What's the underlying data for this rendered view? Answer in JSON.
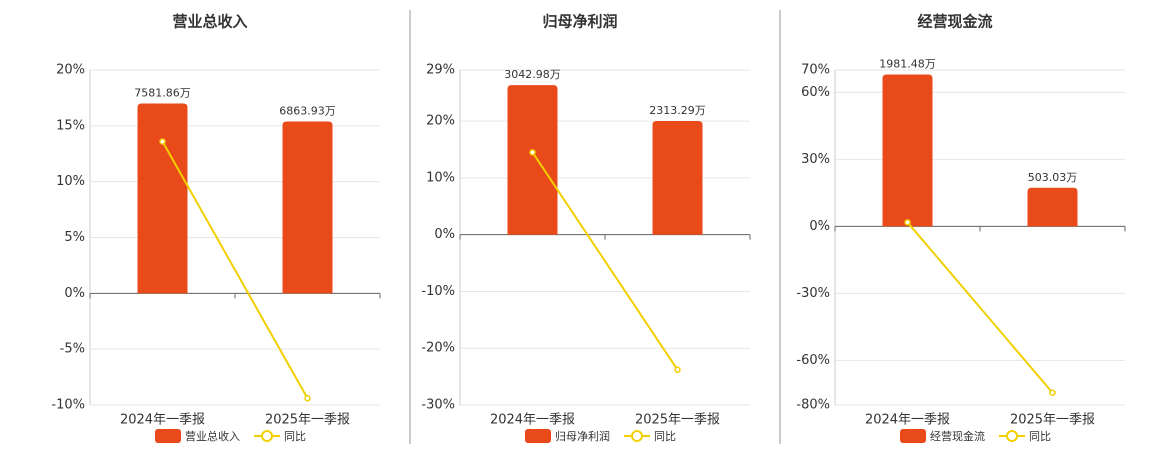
{
  "chart_data": [
    {
      "type": "bar-line",
      "title": "营业总收入",
      "categories": [
        "2024年一季报",
        "2025年一季报"
      ],
      "series": [
        {
          "name": "营业总收入",
          "color": "#e84a1a",
          "values": [
            7581.86,
            6863.93
          ],
          "value_labels": [
            "7581.86万",
            "6863.93万"
          ],
          "axis": "y2"
        },
        {
          "name": "同比",
          "color": "#f2d000",
          "values": [
            13.6,
            -9.4
          ]
        }
      ],
      "ylim": [
        -10,
        20
      ],
      "yticks": [
        {
          "value": -10,
          "label": "-10%"
        },
        {
          "value": -5,
          "label": "-5%"
        },
        {
          "value": 0,
          "label": "0%"
        },
        {
          "value": 5,
          "label": "5%"
        },
        {
          "value": 10,
          "label": "10%"
        },
        {
          "value": 15,
          "label": "15%"
        },
        {
          "value": 20,
          "label": "20%"
        }
      ],
      "y2lim": [
        -4460,
        8920
      ],
      "grid": true
    },
    {
      "type": "bar-line",
      "title": "归母净利润",
      "categories": [
        "2024年一季报",
        "2025年一季报"
      ],
      "series": [
        {
          "name": "归母净利润",
          "color": "#e84a1a",
          "values": [
            3042.98,
            2313.29
          ],
          "value_labels": [
            "3042.98万",
            "2313.29万"
          ],
          "axis": "y2"
        },
        {
          "name": "同比",
          "color": "#f2d000",
          "values": [
            14.5,
            -23.8
          ]
        }
      ],
      "ylim": [
        -30,
        29
      ],
      "yticks": [
        {
          "value": -30,
          "label": "-30%"
        },
        {
          "value": -20,
          "label": "-20%"
        },
        {
          "value": -10,
          "label": "-10%"
        },
        {
          "value": 0,
          "label": "0%"
        },
        {
          "value": 10,
          "label": "10%"
        },
        {
          "value": 20,
          "label": "20%"
        },
        {
          "value": 29,
          "label": "29%"
        }
      ],
      "y2lim": [
        -3460,
        3350
      ],
      "grid": true
    },
    {
      "type": "bar-line",
      "title": "经营现金流",
      "categories": [
        "2024年一季报",
        "2025年一季报"
      ],
      "series": [
        {
          "name": "经营现金流",
          "color": "#e84a1a",
          "values": [
            1981.48,
            503.03
          ],
          "value_labels": [
            "1981.48万",
            "503.03万"
          ],
          "axis": "y2"
        },
        {
          "name": "同比",
          "color": "#f2d000",
          "values": [
            1.8,
            -74.5
          ]
        }
      ],
      "ylim": [
        -80,
        70
      ],
      "yticks": [
        {
          "value": -80,
          "label": "-80%"
        },
        {
          "value": -60,
          "label": "-60%"
        },
        {
          "value": -30,
          "label": "-30%"
        },
        {
          "value": 0,
          "label": "0%"
        },
        {
          "value": 30,
          "label": "30%"
        },
        {
          "value": 60,
          "label": "60%"
        },
        {
          "value": 70,
          "label": "70%"
        }
      ],
      "y2lim": [
        -2331,
        2040
      ],
      "grid": true
    }
  ]
}
